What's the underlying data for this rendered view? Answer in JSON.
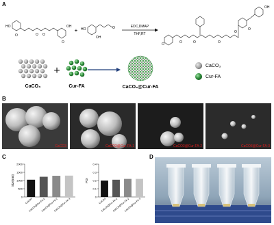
{
  "panel_a": {
    "label": "A",
    "scheme": {
      "plus": "+",
      "reagent_top": "EDC,DMAP",
      "reagent_bottom": "THF,RT",
      "atoms": [
        "HO",
        "O",
        "O",
        "O",
        "OH",
        "O",
        "HO",
        "OH",
        "O",
        "O",
        "O",
        "O",
        "O",
        "O",
        "O",
        "OH"
      ]
    },
    "assembly": {
      "components": [
        "CaCO₃",
        "Cur-FA"
      ],
      "plus": "+",
      "product": "CaCO₃@Cur-FA"
    },
    "legend": [
      {
        "label": "CaCO₃",
        "color": "#8c8c8c"
      },
      {
        "label": "Cur-FA",
        "color": "#2e8b3a"
      }
    ]
  },
  "panel_b": {
    "label": "B",
    "captions": [
      "CaCO3",
      "CaCO3@Cur-FA-1",
      "CaCO3@Cur-FA-2",
      "CaCO3@Cur-FA-3"
    ]
  },
  "panel_c": {
    "label": "C"
  },
  "chart_data": [
    {
      "type": "bar",
      "ylabel": "Size(nm)",
      "categories": [
        "CaCO3",
        "CaCO3@Cur-FA-1",
        "CaCO3@Cur-FA-2",
        "CaCO3@Cur-FA-3"
      ],
      "values": [
        1050,
        1230,
        1290,
        1300
      ],
      "colors": [
        "#111111",
        "#555555",
        "#8a8a8a",
        "#c4c4c4"
      ],
      "ylim": [
        0,
        2000
      ],
      "yticks": [
        0,
        500,
        1000,
        1500,
        2000
      ]
    },
    {
      "type": "bar",
      "ylabel": "PDI",
      "categories": [
        "CaCO3",
        "CaCO3@Cur-FA-1",
        "CaCO3@Cur-FA-2",
        "CaCO3@Cur-FA-3"
      ],
      "values": [
        0.2,
        0.21,
        0.22,
        0.22
      ],
      "colors": [
        "#111111",
        "#555555",
        "#8a8a8a",
        "#c4c4c4"
      ],
      "ylim": [
        0,
        0.4
      ],
      "yticks": [
        0,
        0.1,
        0.2,
        0.3,
        0.4
      ]
    }
  ],
  "panel_d": {
    "label": "D"
  }
}
